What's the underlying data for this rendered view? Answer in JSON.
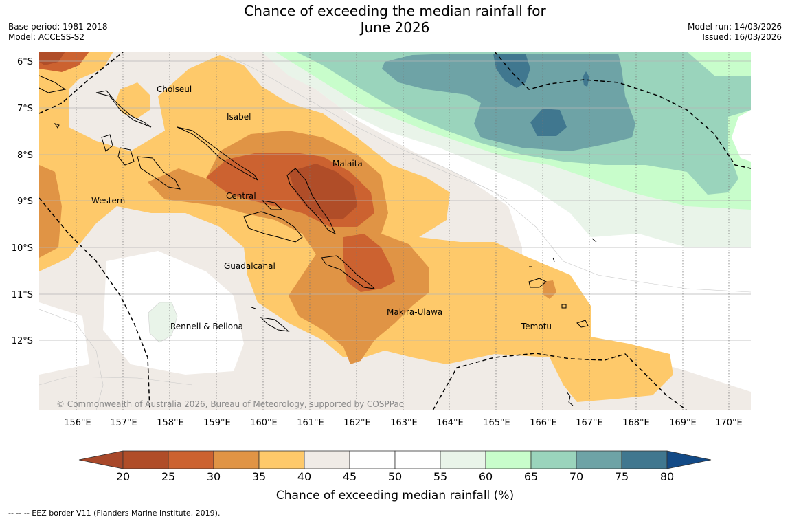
{
  "header": {
    "title_line1": "Chance of exceeding the median rainfall for",
    "title_line2": "June 2026",
    "base_period": "Base period: 1981-2018",
    "model": "Model: ACCESS-S2",
    "model_run": "Model run: 14/03/2026",
    "issued": "Issued: 16/03/2026"
  },
  "map": {
    "lat_labels": [
      "6°S",
      "7°S",
      "8°S",
      "9°S",
      "10°S",
      "11°S",
      "12°S"
    ],
    "lon_labels": [
      "156°E",
      "157°E",
      "158°E",
      "159°E",
      "160°E",
      "161°E",
      "162°E",
      "163°E",
      "164°E",
      "165°E",
      "166°E",
      "167°E",
      "168°E",
      "169°E",
      "170°E"
    ],
    "provinces": [
      "Choiseul",
      "Isabel",
      "Malaita",
      "Western",
      "Central",
      "Guadalcanal",
      "Rennell & Bellona",
      "Makira-Ulawa",
      "Temotu"
    ],
    "copyright": "© Commonwealth of Australia 2026, Bureau of Meteorology, supported by COSPPac"
  },
  "colorbar": {
    "ticks": [
      "20",
      "25",
      "30",
      "35",
      "40",
      "45",
      "50",
      "55",
      "60",
      "65",
      "70",
      "75",
      "80"
    ],
    "colors": [
      "#a8482a",
      "#b04d28",
      "#cc6230",
      "#e09445",
      "#fec96a",
      "#f0ebe6",
      "#ffffff",
      "#ffffff",
      "#e9f4e9",
      "#c8fdcb",
      "#9ad4bc",
      "#6ea3a6",
      "#40778f",
      "#134a86"
    ],
    "label": "Chance of exceeding median rainfall (%)"
  },
  "footnote": "--  --  -- EEZ border V11 (Flanders Marine Institute, 2019)."
}
